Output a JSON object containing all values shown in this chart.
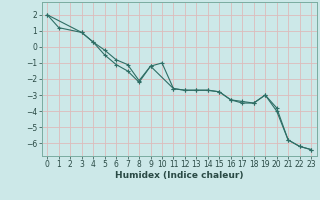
{
  "xlabel": "Humidex (Indice chaleur)",
  "background_color": "#cce8e8",
  "grid_color": "#ddbbbb",
  "line_color": "#2e6e65",
  "xlim": [
    -0.5,
    23.5
  ],
  "ylim": [
    -6.8,
    2.8
  ],
  "yticks": [
    2,
    1,
    0,
    -1,
    -2,
    -3,
    -4,
    -5,
    -6
  ],
  "xticks": [
    0,
    1,
    2,
    3,
    4,
    5,
    6,
    7,
    8,
    9,
    10,
    11,
    12,
    13,
    14,
    15,
    16,
    17,
    18,
    19,
    20,
    21,
    22,
    23
  ],
  "line1_x": [
    0,
    1,
    3,
    4,
    5,
    6,
    7,
    8,
    9,
    10,
    11,
    12,
    13,
    14,
    15,
    16,
    17,
    18,
    19,
    20,
    21,
    22,
    23
  ],
  "line1_y": [
    2.0,
    1.2,
    0.9,
    0.3,
    -0.5,
    -1.1,
    -1.5,
    -2.2,
    -1.2,
    -1.0,
    -2.6,
    -2.7,
    -2.7,
    -2.7,
    -2.8,
    -3.3,
    -3.4,
    -3.5,
    -3.0,
    -3.8,
    -5.8,
    -6.2,
    -6.4
  ],
  "line2_x": [
    0,
    3,
    4,
    5,
    6,
    7,
    8,
    9,
    11,
    12,
    13,
    14,
    15,
    16,
    17,
    18,
    19,
    20,
    21,
    22,
    23
  ],
  "line2_y": [
    2.0,
    0.9,
    0.3,
    -0.2,
    -0.8,
    -1.1,
    -2.1,
    -1.2,
    -2.6,
    -2.7,
    -2.7,
    -2.7,
    -2.8,
    -3.3,
    -3.5,
    -3.5,
    -3.0,
    -4.0,
    -5.8,
    -6.2,
    -6.4
  ],
  "tick_fontsize": 5.5,
  "xlabel_fontsize": 6.5,
  "tick_color": "#2a4a45",
  "spine_color": "#7aacA0"
}
